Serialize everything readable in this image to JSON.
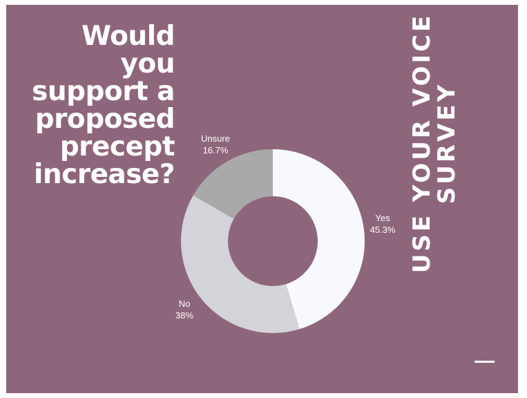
{
  "question": {
    "lines": [
      "Would",
      "you",
      "support a",
      "proposed",
      "precept",
      "increase?"
    ]
  },
  "side_title": {
    "lines": [
      "USE YOUR VOICE",
      "SURVEY"
    ]
  },
  "colors": {
    "background": "#8e667b",
    "yes": "#f7f9fc",
    "no": "#d3d4d8",
    "unsure": "#a9a9aa"
  },
  "chart_data": {
    "type": "pie",
    "donut": true,
    "categories": [
      "Yes",
      "No",
      "Unsure"
    ],
    "values": [
      45.3,
      38,
      16.7
    ],
    "labels": [
      "45.3%",
      "38%",
      "16.7%"
    ],
    "title": ""
  }
}
